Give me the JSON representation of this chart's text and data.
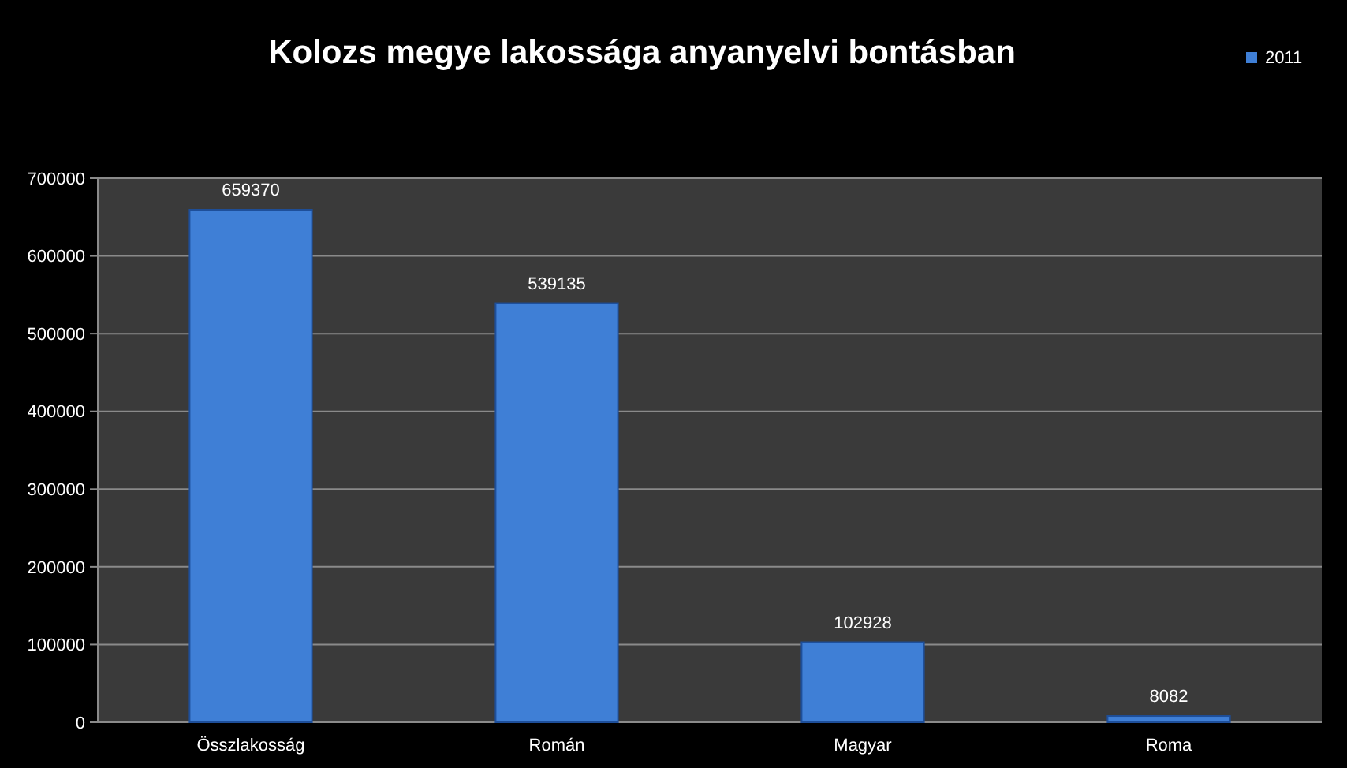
{
  "chart_data": {
    "type": "bar",
    "title": "Kolozs megye lakossága anyanyelvi bontásban",
    "categories": [
      "Összlakosság",
      "Román",
      "Magyar",
      "Roma"
    ],
    "series": [
      {
        "name": "2011",
        "color": "#3f7fd6",
        "values": [
          659370,
          539135,
          102928,
          8082
        ]
      }
    ],
    "ylim": [
      0,
      700000
    ],
    "yticks": [
      0,
      100000,
      200000,
      300000,
      400000,
      500000,
      600000,
      700000
    ],
    "grid": "y",
    "legend": "top right",
    "data_labels": true
  }
}
